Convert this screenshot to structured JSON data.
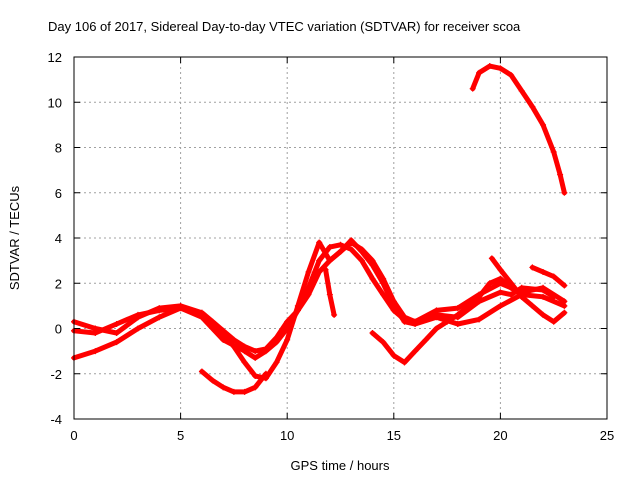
{
  "chart_data": {
    "type": "scatter",
    "title": "Day 106 of 2017, Sidereal Day-to-day VTEC variation (SDTVAR) for receiver scoa",
    "xlabel": "GPS time / hours",
    "ylabel": "SDTVAR / TECUs",
    "xlim": [
      0,
      25
    ],
    "ylim": [
      -4,
      12
    ],
    "xticks": [
      "0",
      "5",
      "10",
      "15",
      "20",
      "25"
    ],
    "yticks": [
      "-4",
      "-2",
      "0",
      "2",
      "4",
      "6",
      "8",
      "10",
      "12"
    ],
    "grid": true,
    "marker": "+",
    "color": "#ff0000",
    "series": [
      {
        "name": "track1",
        "x": [
          0.0,
          1.0,
          2.0,
          3.0,
          4.0,
          5.0,
          6.0,
          7.0,
          7.5,
          8.0,
          8.5,
          9.0,
          9.5,
          10.0,
          10.5,
          11.0,
          11.5,
          12.0,
          12.5,
          13.0,
          13.5,
          14.0,
          14.5,
          15.0,
          15.5,
          16.0,
          17.0,
          18.0,
          19.0,
          20.0,
          21.0,
          22.0,
          23.0
        ],
        "y": [
          -1.3,
          -1.0,
          -0.6,
          0.0,
          0.5,
          0.9,
          0.6,
          -0.2,
          -0.8,
          -1.5,
          -2.1,
          -2.2,
          -1.5,
          -0.5,
          1.0,
          2.5,
          3.8,
          3.0,
          3.4,
          3.9,
          3.4,
          2.8,
          2.0,
          1.0,
          0.3,
          0.2,
          0.5,
          0.2,
          0.4,
          1.0,
          1.5,
          1.4,
          1.0
        ]
      },
      {
        "name": "track2",
        "x": [
          0.0,
          1.0,
          2.0,
          3.0,
          4.0,
          5.0,
          6.0,
          7.0,
          8.0,
          8.5,
          9.0,
          9.5,
          10.0,
          10.5,
          11.0,
          11.5,
          12.0,
          12.5,
          13.0,
          13.5,
          14.0,
          14.5,
          15.0,
          15.5,
          16.0,
          17.0,
          18.0,
          19.0,
          20.0,
          20.5,
          21.0,
          22.0,
          22.5
        ],
        "y": [
          -0.1,
          -0.2,
          0.2,
          0.6,
          0.8,
          0.9,
          0.5,
          -0.5,
          -1.0,
          -1.3,
          -1.0,
          -0.6,
          0.0,
          0.8,
          1.8,
          3.0,
          3.6,
          3.7,
          3.5,
          3.0,
          2.2,
          1.5,
          0.8,
          0.4,
          0.3,
          0.6,
          0.5,
          1.2,
          1.6,
          1.5,
          1.8,
          1.7,
          1.4
        ]
      },
      {
        "name": "track3",
        "x": [
          0.0,
          1.0,
          2.0,
          3.0,
          4.0,
          5.0,
          6.0,
          6.5,
          7.0,
          7.5,
          8.0,
          8.5,
          9.0,
          9.5,
          10.0,
          10.5,
          11.0,
          11.5,
          12.0,
          12.5,
          13.0,
          13.5,
          14.0,
          14.5,
          15.0,
          15.5,
          16.0,
          17.0,
          18.0,
          19.0,
          20.0,
          21.0,
          22.0,
          23.0
        ],
        "y": [
          0.3,
          0.0,
          -0.2,
          0.5,
          0.9,
          1.0,
          0.7,
          0.3,
          -0.1,
          -0.5,
          -0.8,
          -1.0,
          -0.9,
          -0.4,
          0.3,
          0.8,
          1.5,
          2.5,
          3.0,
          3.4,
          3.8,
          3.5,
          3.0,
          2.2,
          1.2,
          0.5,
          0.3,
          0.8,
          0.9,
          1.5,
          2.0,
          1.6,
          1.8,
          1.2
        ]
      },
      {
        "name": "track4",
        "x": [
          6.0,
          6.5,
          7.0,
          7.5,
          8.0,
          8.5,
          9.0
        ],
        "y": [
          -1.9,
          -2.3,
          -2.6,
          -2.8,
          -2.8,
          -2.6,
          -2.0
        ]
      },
      {
        "name": "track5",
        "x": [
          11.8,
          12.0,
          12.2
        ],
        "y": [
          2.6,
          1.5,
          0.6
        ]
      },
      {
        "name": "track6",
        "x": [
          14.0,
          14.5,
          15.0,
          15.5,
          16.0,
          16.5,
          17.0,
          17.5,
          18.0,
          18.5,
          19.0,
          19.5,
          20.0,
          20.5,
          21.0
        ],
        "y": [
          -0.2,
          -0.6,
          -1.2,
          -1.5,
          -1.0,
          -0.5,
          0.0,
          0.3,
          0.6,
          1.0,
          1.4,
          2.0,
          2.2,
          1.8,
          1.5
        ]
      },
      {
        "name": "track7",
        "x": [
          19.6,
          20.0,
          20.5,
          21.0,
          21.5,
          22.0,
          22.5,
          23.0
        ],
        "y": [
          3.1,
          2.6,
          2.0,
          1.4,
          1.0,
          0.6,
          0.3,
          0.7
        ]
      },
      {
        "name": "track8",
        "x": [
          21.5,
          22.0,
          22.5,
          23.0
        ],
        "y": [
          2.7,
          2.5,
          2.3,
          1.9
        ]
      },
      {
        "name": "track9",
        "x": [
          18.7,
          19.0,
          19.5,
          20.0,
          20.5,
          21.0,
          21.5,
          22.0,
          22.5,
          22.8,
          23.0
        ],
        "y": [
          10.6,
          11.3,
          11.6,
          11.5,
          11.2,
          10.5,
          9.8,
          9.0,
          7.8,
          6.8,
          6.0
        ]
      }
    ]
  }
}
